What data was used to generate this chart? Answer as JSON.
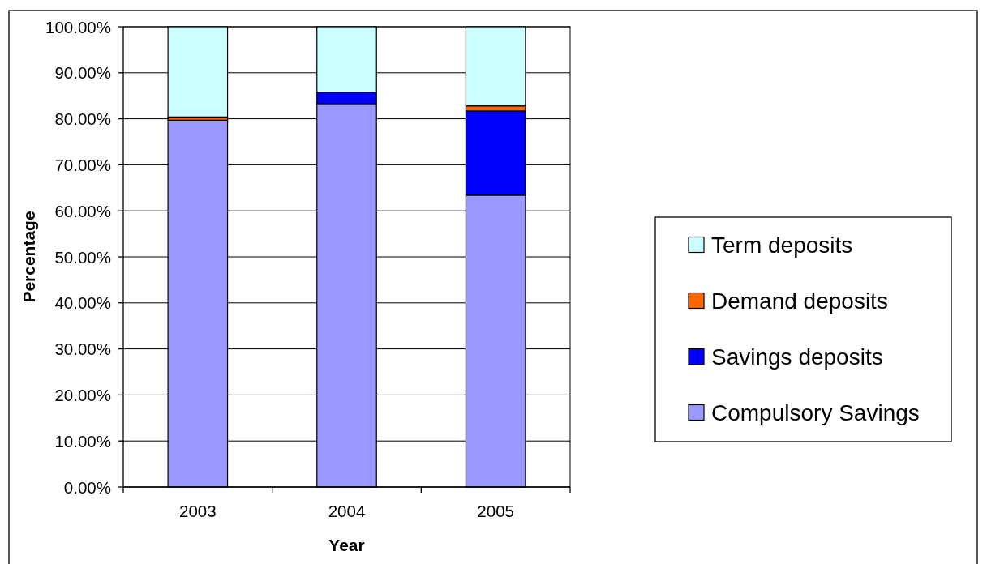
{
  "chart_data": {
    "type": "bar",
    "stacked": true,
    "xlabel": "Year",
    "ylabel": "Percentage",
    "categories": [
      "2003",
      "2004",
      "2005"
    ],
    "series": [
      {
        "name": "Compulsory Savings",
        "color": "#9999ff",
        "values": [
          79.7,
          83.3,
          63.4
        ]
      },
      {
        "name": "Savings deposits",
        "color": "#0000ff",
        "values": [
          0,
          2.5,
          18.3
        ]
      },
      {
        "name": "Demand deposits",
        "color": "#ff6600",
        "values": [
          0.7,
          0,
          1.1
        ]
      },
      {
        "name": "Term deposits",
        "color": "#ccffff",
        "values": [
          19.6,
          14.2,
          17.2
        ]
      }
    ],
    "ylim": [
      0,
      100
    ],
    "yticks": [
      {
        "value": 0,
        "label": "0.00%"
      },
      {
        "value": 10,
        "label": "10.00%"
      },
      {
        "value": 20,
        "label": "20.00%"
      },
      {
        "value": 30,
        "label": "30.00%"
      },
      {
        "value": 40,
        "label": "40.00%"
      },
      {
        "value": 50,
        "label": "50.00%"
      },
      {
        "value": 60,
        "label": "60.00%"
      },
      {
        "value": 70,
        "label": "70.00%"
      },
      {
        "value": 80,
        "label": "80.00%"
      },
      {
        "value": 90,
        "label": "90.00%"
      },
      {
        "value": 100,
        "label": "100.00%"
      }
    ],
    "grid": "y",
    "legend": "right"
  }
}
